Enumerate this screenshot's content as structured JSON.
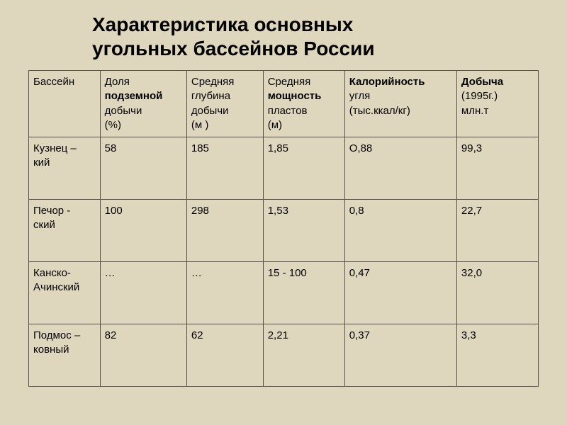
{
  "title_line1": "Характеристика основных",
  "title_line2": "угольных бассейнов России",
  "columns": {
    "basin": {
      "l1": "Бассейн"
    },
    "share": {
      "l1": "Доля",
      "l2": "подземной",
      "l3": "добычи",
      "l4": "  (%)"
    },
    "depth": {
      "l1": "Средняя",
      "l2": "глубина",
      "l3": "добычи",
      "l4": "  (м )"
    },
    "power": {
      "l1": "Средняя",
      "l2": "мощность",
      "l3": "пластов",
      "l4": "   (м)"
    },
    "calor": {
      "l1": "Калорийность",
      "l2": "угля",
      "l3": "(тыс.ккал/кг)"
    },
    "prod": {
      "l1": "Добыча",
      "l2": "(1995г.)",
      "l3": "млн.т"
    }
  },
  "rows": [
    {
      "basin_l1": "Кузнец –",
      "basin_l2": "кий",
      "share": "58",
      "depth": "185",
      "power": "1,85",
      "calor": "О,88",
      "prod": "99,3"
    },
    {
      "basin_l1": "Печор -",
      "basin_l2": "ский",
      "share": "100",
      "depth": "298",
      "power": "1,53",
      "calor": "0,8",
      "prod": "22,7"
    },
    {
      "basin_l1": "Канско-",
      "basin_l2": "Ачинский",
      "share": "…",
      "depth": "…",
      "power": "15 - 100",
      "calor": "0,47",
      "prod": "32,0"
    },
    {
      "basin_l1": "Подмос –",
      "basin_l2": "ковный",
      "share": "82",
      "depth": "62",
      "power": "2,21",
      "calor": "0,37",
      "prod": "3,3"
    }
  ],
  "style": {
    "background": "#ded6bd",
    "border_color": "#585046",
    "title_fontsize": 28,
    "cell_fontsize": 15,
    "font_family": "Arial",
    "col_widths_pct": [
      14,
      17,
      15,
      16,
      22,
      16
    ]
  }
}
